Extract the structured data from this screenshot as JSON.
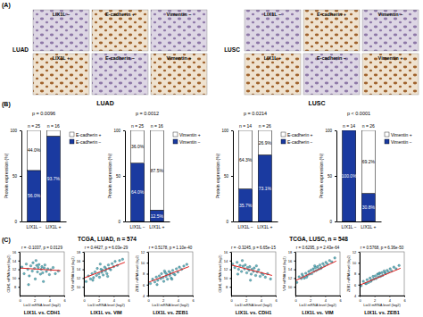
{
  "figure": {
    "panel_labels": [
      "(A)",
      "(B)",
      "(C)"
    ],
    "ihc": [
      {
        "title": "LUAD",
        "labels": [
          [
            "LIX1L −",
            "E-cadherin +",
            "Vimentin −"
          ],
          [
            "LIX1L +",
            "E-cadherin −",
            "Vimentin +"
          ]
        ]
      },
      {
        "title": "LUSC",
        "labels": [
          [
            "LIX1L −",
            "E-cadherin +",
            "Vimentin −"
          ],
          [
            "LIX1L +",
            "E-cadherin −",
            "Vimentin +"
          ]
        ]
      }
    ],
    "bar_headers": [
      "LUAD",
      "LUSC"
    ],
    "scatter_headers": [
      "TCGA, LUAD, n = 574",
      "TCGA, LUSC, n = 548"
    ]
  },
  "chart_data": [
    {
      "type": "bar",
      "stacked": true,
      "title": "p = 0.0096",
      "categories": [
        "LIX1L −",
        "LIX1L +"
      ],
      "annotations": [
        "n = 25",
        "n = 16"
      ],
      "y_label": "Protein expression (%)",
      "ylim": [
        0,
        100
      ],
      "yticks": [
        0,
        50,
        100
      ],
      "data_labels": true,
      "legend": "right",
      "series": [
        {
          "name": "E-cadherin −",
          "color": "#1a3aa0",
          "values": [
            56.0,
            93.7
          ],
          "value_labels": [
            "56.0%",
            "93.7%"
          ]
        },
        {
          "name": "E-cadherin +",
          "color": "#ffffff",
          "values": [
            44.0,
            6.3
          ],
          "value_labels": [
            "44.0%",
            null
          ]
        }
      ]
    },
    {
      "type": "bar",
      "stacked": true,
      "title": "p = 0.0012",
      "categories": [
        "LIX1L −",
        "LIX1L +"
      ],
      "annotations": [
        "n = 25",
        "n = 16"
      ],
      "y_label": "Protein expression (%)",
      "ylim": [
        0,
        100
      ],
      "yticks": [
        0,
        50,
        100
      ],
      "data_labels": true,
      "legend": "right",
      "series": [
        {
          "name": "Vimentin −",
          "color": "#1a3aa0",
          "values": [
            64.0,
            12.5
          ],
          "value_labels": [
            "64.0%",
            "12.5%"
          ]
        },
        {
          "name": "Vimentin +",
          "color": "#ffffff",
          "values": [
            36.0,
            87.5
          ],
          "value_labels": [
            "36.0%",
            "87.5%"
          ]
        }
      ]
    },
    {
      "type": "bar",
      "stacked": true,
      "title": "p = 0.0214",
      "categories": [
        "LIX1L −",
        "LIX1L +"
      ],
      "annotations": [
        "n = 14",
        "n = 26"
      ],
      "y_label": "Protein expression (%)",
      "ylim": [
        0,
        100
      ],
      "yticks": [
        0,
        50,
        100
      ],
      "data_labels": true,
      "legend": "right",
      "series": [
        {
          "name": "E-cadherin −",
          "color": "#1a3aa0",
          "values": [
            35.7,
            73.1
          ],
          "value_labels": [
            "35.7%",
            "73.1%"
          ]
        },
        {
          "name": "E-cadherin +",
          "color": "#ffffff",
          "values": [
            64.3,
            26.9
          ],
          "value_labels": [
            "64.3%",
            "26.9%"
          ]
        }
      ]
    },
    {
      "type": "bar",
      "stacked": true,
      "title": "p < 0.0001",
      "categories": [
        "LIX1L −",
        "LIX1L +"
      ],
      "annotations": [
        "n = 14",
        "n = 26"
      ],
      "y_label": "Protein expression (%)",
      "ylim": [
        0,
        100
      ],
      "yticks": [
        0,
        50,
        100
      ],
      "data_labels": true,
      "legend": "right",
      "series": [
        {
          "name": "Vimentin −",
          "color": "#1a3aa0",
          "values": [
            100.0,
            30.8
          ],
          "value_labels": [
            "100.0%",
            "30.8%"
          ]
        },
        {
          "name": "Vimentin +",
          "color": "#ffffff",
          "values": [
            0,
            69.2
          ],
          "value_labels": [
            null,
            "69.2%"
          ]
        }
      ]
    },
    {
      "type": "scatter",
      "title": "r = -0.1037, p = 0.0129",
      "subtitle": "LIX1L vs. CDH1",
      "x_label": "Lix1l mRNA level (log2)",
      "y_label": "CDH1 mRNA level (log2)",
      "color": "#3fa7b5",
      "xlim": [
        0,
        6
      ],
      "xticks": [
        0,
        2,
        4,
        6
      ],
      "ylim": [
        6,
        16
      ],
      "yticks": [
        8,
        10,
        12,
        14,
        16
      ],
      "x": [
        0.3,
        0.6,
        0.9,
        1.1,
        1.3,
        1.5,
        1.7,
        1.8,
        2.0,
        2.1,
        2.3,
        2.4,
        2.5,
        2.6,
        2.8,
        2.9,
        3.0,
        3.1,
        3.3,
        3.4,
        3.6,
        3.8,
        4.0,
        4.2,
        4.5,
        4.8,
        5.2,
        1.2,
        2.2,
        3.2
      ],
      "y": [
        12.5,
        11.0,
        13.2,
        12.0,
        10.5,
        12.8,
        11.6,
        13.5,
        12.2,
        9.8,
        12.9,
        11.4,
        12.4,
        13.1,
        10.9,
        12.0,
        12.6,
        11.2,
        12.3,
        13.0,
        11.5,
        12.1,
        10.8,
        11.9,
        12.4,
        11.0,
        11.6,
        8.5,
        14.0,
        9.2
      ],
      "fit": {
        "color": "#e02020",
        "x": [
          0,
          5.5
        ],
        "y": [
          12.3,
          11.7
        ]
      }
    },
    {
      "type": "scatter",
      "title": "r = 0.4427, p = 6.03e-29",
      "subtitle": "LIX1L vs. VIM",
      "x_label": "Lix1l mRNA level (log2)",
      "y_label": "VIM mRNA level (log2)",
      "color": "#3fa7b5",
      "xlim": [
        0,
        6
      ],
      "xticks": [
        0,
        2,
        4,
        6
      ],
      "ylim": [
        8,
        18
      ],
      "yticks": [
        10,
        12,
        14,
        16,
        18
      ],
      "x": [
        0.3,
        0.6,
        0.9,
        1.1,
        1.3,
        1.5,
        1.7,
        1.8,
        2.0,
        2.1,
        2.3,
        2.4,
        2.5,
        2.6,
        2.8,
        2.9,
        3.0,
        3.1,
        3.3,
        3.4,
        3.6,
        3.8,
        4.0,
        4.2,
        4.5,
        4.8,
        5.2,
        1.2,
        2.2,
        3.2
      ],
      "y": [
        11.2,
        12.5,
        11.8,
        13.0,
        12.1,
        13.4,
        12.6,
        14.2,
        13.0,
        12.2,
        14.0,
        13.3,
        13.8,
        12.7,
        14.5,
        13.6,
        14.1,
        13.0,
        15.0,
        14.2,
        13.9,
        15.3,
        14.6,
        15.8,
        14.9,
        16.0,
        16.3,
        11.5,
        15.2,
        12.4
      ],
      "fit": {
        "color": "#e02020",
        "x": [
          0,
          5.5
        ],
        "y": [
          12.0,
          15.6
        ]
      }
    },
    {
      "type": "scatter",
      "title": "r = 0.5178, p = 1.10e-40",
      "subtitle": "LIX1L vs. ZEB1",
      "x_label": "Lix1l mRNA level (log2)",
      "y_label": "ZEB1 mRNA level (log2)",
      "color": "#3fa7b5",
      "xlim": [
        0,
        6
      ],
      "xticks": [
        0,
        2,
        4,
        6
      ],
      "ylim": [
        4,
        12
      ],
      "yticks": [
        4,
        6,
        8,
        10,
        12
      ],
      "x": [
        0.3,
        0.6,
        0.9,
        1.1,
        1.3,
        1.5,
        1.7,
        1.8,
        2.0,
        2.1,
        2.3,
        2.4,
        2.5,
        2.6,
        2.8,
        2.9,
        3.0,
        3.1,
        3.3,
        3.4,
        3.6,
        3.8,
        4.0,
        4.2,
        4.5,
        4.8,
        5.2,
        1.2,
        2.2,
        3.2
      ],
      "y": [
        6.2,
        7.0,
        6.5,
        7.4,
        6.8,
        7.6,
        7.1,
        8.0,
        7.3,
        6.6,
        8.2,
        7.5,
        7.9,
        7.0,
        8.4,
        7.7,
        8.1,
        7.2,
        8.6,
        8.0,
        7.8,
        8.9,
        8.3,
        9.2,
        8.8,
        9.4,
        9.7,
        6.0,
        8.5,
        7.0
      ],
      "fit": {
        "color": "#e02020",
        "x": [
          0,
          5.5
        ],
        "y": [
          6.4,
          9.3
        ]
      }
    },
    {
      "type": "scatter",
      "title": "r = -0.3245, p = 6.65e-15",
      "subtitle": "LIX1L vs. CDH1",
      "x_label": "Lix1l mRNA level (log2)",
      "y_label": "CDH1 mRNA level (log2)",
      "color": "#3fa7b5",
      "xlim": [
        0,
        6
      ],
      "xticks": [
        0,
        2,
        4,
        6
      ],
      "ylim": [
        6,
        16
      ],
      "yticks": [
        8,
        10,
        12,
        14,
        16
      ],
      "x": [
        0.2,
        0.5,
        0.8,
        1.0,
        1.2,
        1.4,
        1.6,
        1.8,
        1.9,
        2.1,
        2.2,
        2.4,
        2.5,
        2.7,
        2.8,
        3.0,
        3.1,
        3.3,
        3.5,
        3.7,
        3.9,
        4.1,
        4.3,
        4.6,
        4.9,
        5.3,
        1.5,
        2.6,
        3.4,
        0.9
      ],
      "y": [
        13.2,
        12.4,
        13.6,
        12.0,
        12.9,
        11.5,
        12.7,
        12.1,
        13.0,
        11.2,
        12.4,
        11.8,
        12.6,
        10.9,
        12.0,
        11.5,
        12.3,
        10.6,
        11.4,
        11.9,
        10.4,
        11.1,
        10.8,
        10.2,
        11.0,
        9.8,
        14.0,
        9.5,
        12.8,
        10.9
      ],
      "fit": {
        "color": "#e02020",
        "x": [
          0,
          5.5
        ],
        "y": [
          13.0,
          10.6
        ]
      }
    },
    {
      "type": "scatter",
      "title": "r = 0.6295, p = 2.43e-64",
      "subtitle": "LIX1L vs. VIM",
      "x_label": "Lix1l mRNA level (log2)",
      "y_label": "VIM mRNA level (log2)",
      "color": "#3fa7b5",
      "xlim": [
        0,
        6
      ],
      "xticks": [
        0,
        2,
        4,
        6
      ],
      "ylim": [
        8,
        18
      ],
      "yticks": [
        10,
        12,
        14,
        16,
        18
      ],
      "x": [
        0.2,
        0.5,
        0.8,
        1.0,
        1.2,
        1.4,
        1.6,
        1.8,
        1.9,
        2.1,
        2.2,
        2.4,
        2.5,
        2.7,
        2.8,
        3.0,
        3.1,
        3.3,
        3.5,
        3.7,
        3.9,
        4.1,
        4.3,
        4.6,
        4.9,
        5.3,
        1.5,
        2.6,
        3.4,
        0.9
      ],
      "y": [
        11.0,
        12.3,
        11.9,
        12.5,
        12.0,
        13.1,
        12.6,
        13.5,
        12.9,
        13.8,
        13.0,
        14.1,
        13.5,
        14.4,
        13.7,
        14.6,
        14.0,
        15.0,
        14.4,
        15.3,
        14.8,
        15.6,
        15.2,
        16.0,
        15.7,
        16.6,
        12.2,
        14.8,
        14.2,
        12.9
      ],
      "fit": {
        "color": "#e02020",
        "x": [
          0,
          5.5
        ],
        "y": [
          11.4,
          15.9
        ]
      }
    },
    {
      "type": "scatter",
      "title": "r = 0.5768, p = 6.36e-50",
      "subtitle": "LIX1L vs. ZEB1",
      "x_label": "Lix1l mRNA level (log2)",
      "y_label": "ZEB1 mRNA level (log2)",
      "color": "#3fa7b5",
      "xlim": [
        0,
        6
      ],
      "xticks": [
        0,
        2,
        4,
        6
      ],
      "ylim": [
        4,
        12
      ],
      "yticks": [
        4,
        6,
        8,
        10,
        12
      ],
      "x": [
        0.2,
        0.5,
        0.8,
        1.0,
        1.2,
        1.4,
        1.6,
        1.8,
        1.9,
        2.1,
        2.2,
        2.4,
        2.5,
        2.7,
        2.8,
        3.0,
        3.1,
        3.3,
        3.5,
        3.7,
        3.9,
        4.1,
        4.3,
        4.6,
        4.9,
        5.3,
        1.5,
        2.6,
        3.4,
        0.9
      ],
      "y": [
        5.8,
        6.6,
        6.2,
        6.9,
        6.4,
        7.2,
        6.8,
        7.5,
        7.0,
        7.6,
        7.1,
        7.9,
        7.4,
        8.1,
        7.5,
        8.2,
        7.7,
        8.5,
        8.0,
        8.6,
        8.3,
        8.9,
        8.5,
        9.2,
        8.9,
        9.5,
        6.6,
        8.0,
        8.2,
        6.2
      ],
      "fit": {
        "color": "#e02020",
        "x": [
          0,
          5.5
        ],
        "y": [
          5.9,
          9.0
        ]
      }
    }
  ]
}
